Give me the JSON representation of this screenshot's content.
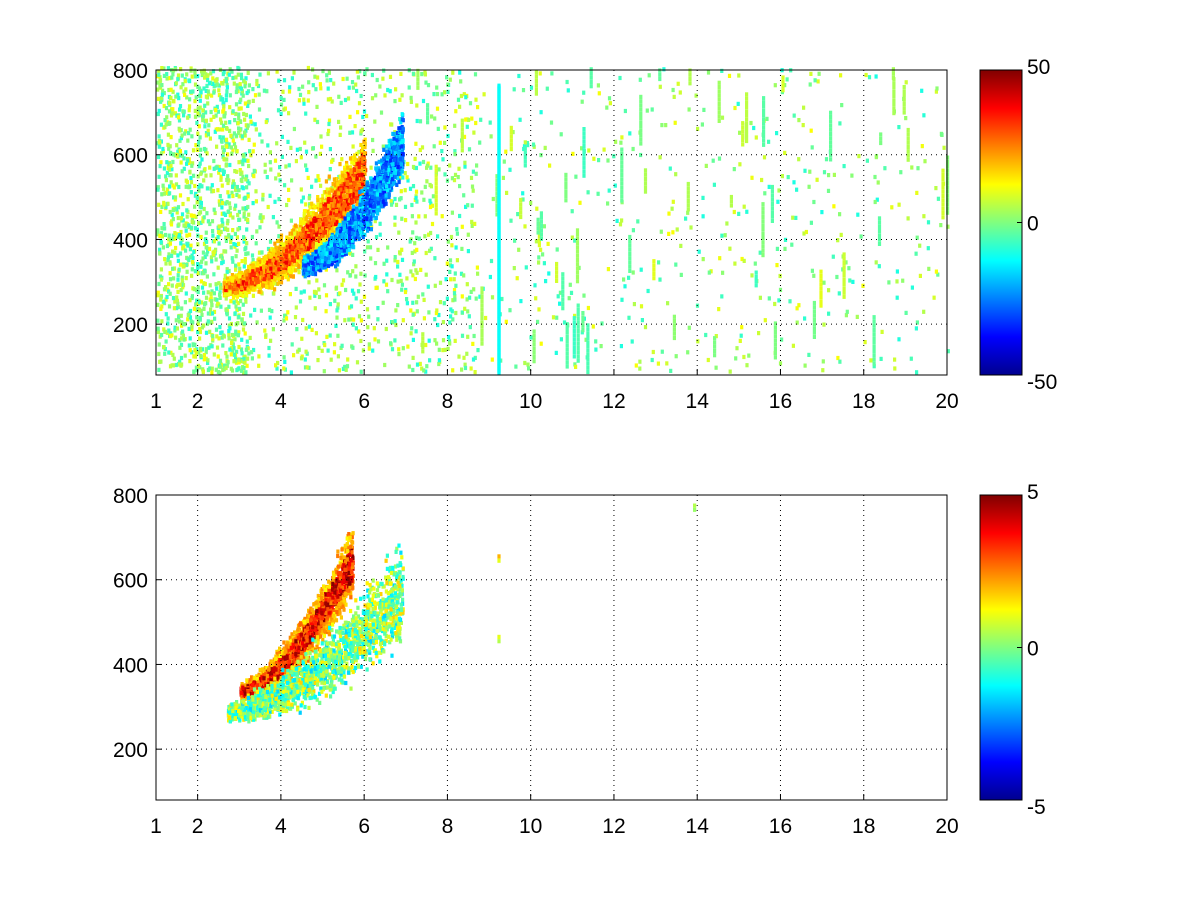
{
  "figure": {
    "background": "#ffffff",
    "colormap": "jet"
  },
  "chart_data": [
    {
      "type": "heatmap",
      "title": "",
      "xlabel": "",
      "ylabel": "",
      "xlim": [
        1,
        20
      ],
      "ylim": [
        80,
        800
      ],
      "xticks": [
        1,
        2,
        4,
        6,
        8,
        10,
        12,
        14,
        16,
        18,
        20
      ],
      "xtick_labels": [
        "1",
        "2",
        "4",
        "6",
        "8",
        "10",
        "12",
        "14",
        "16",
        "18",
        "20"
      ],
      "yticks": [
        200,
        400,
        600,
        800
      ],
      "ytick_labels": [
        "200",
        "400",
        "600",
        "800"
      ],
      "grid": true,
      "colorbar": {
        "min": -50,
        "max": 50,
        "ticks": [
          -50,
          0,
          50
        ],
        "tick_labels": [
          "-50",
          "0",
          "50"
        ]
      },
      "sparse_background": true,
      "features": [
        {
          "kind": "positive-band",
          "x_range": [
            2.6,
            6.0
          ],
          "y_at_start": 280,
          "y_at_end": 560,
          "peak_value": 40
        },
        {
          "kind": "negative-band",
          "x_range": [
            4.5,
            6.9
          ],
          "y_at_start": 330,
          "y_at_end": 620,
          "peak_value": -35
        },
        {
          "kind": "vertical-stripe",
          "x": 9.2,
          "y_range": [
            80,
            760
          ],
          "value": -12
        }
      ]
    },
    {
      "type": "heatmap",
      "title": "",
      "xlabel": "",
      "ylabel": "",
      "xlim": [
        1,
        20
      ],
      "ylim": [
        80,
        800
      ],
      "xticks": [
        1,
        2,
        4,
        6,
        8,
        10,
        12,
        14,
        16,
        18,
        20
      ],
      "xtick_labels": [
        "1",
        "2",
        "4",
        "6",
        "8",
        "10",
        "12",
        "14",
        "16",
        "18",
        "20"
      ],
      "yticks": [
        200,
        400,
        600,
        800
      ],
      "ytick_labels": [
        "200",
        "400",
        "600",
        "800"
      ],
      "grid": true,
      "colorbar": {
        "min": -5,
        "max": 5,
        "ticks": [
          -5,
          0,
          5
        ],
        "tick_labels": [
          "-5",
          "0",
          "5"
        ]
      },
      "sparse_background": false,
      "features": [
        {
          "kind": "positive-band",
          "x_range": [
            3.0,
            5.7
          ],
          "y_at_start": 330,
          "y_at_end": 640,
          "peak_value": 5
        },
        {
          "kind": "neutral-band",
          "x_range": [
            2.7,
            6.9
          ],
          "y_at_start": 280,
          "y_at_end": 570,
          "peak_value": 0.5
        },
        {
          "kind": "isolated-points",
          "points": [
            [
              9.2,
              650,
              2
            ],
            [
              9.2,
              460,
              1
            ],
            [
              13.9,
              770,
              0.5
            ]
          ]
        }
      ]
    }
  ]
}
